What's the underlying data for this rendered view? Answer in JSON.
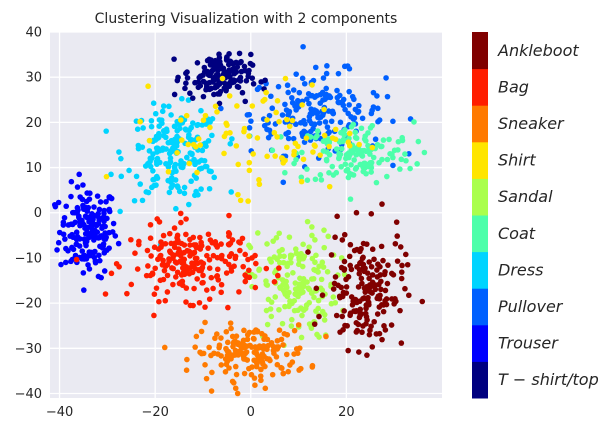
{
  "chart_data": {
    "type": "scatter",
    "title": "Clustering Visualization with 2 components",
    "xlabel": "",
    "ylabel": "",
    "xlim": [
      -42,
      40
    ],
    "ylim": [
      -41,
      40
    ],
    "x_ticks": [
      -40,
      -20,
      0,
      20
    ],
    "y_ticks": [
      40,
      30,
      20,
      10,
      0,
      -10,
      -20,
      -30,
      -40
    ],
    "grid": true,
    "background": "#eaeaf2",
    "colorbar": {
      "labels": [
        "T-shirt/top",
        "Trouser",
        "Pullover",
        "Dress",
        "Coat",
        "Sandal",
        "Shirt",
        "Sneaker",
        "Bag",
        "Ankleboot"
      ],
      "display_labels": [
        "T − shirt/top",
        "Trouser",
        "Pullover",
        "Dress",
        "Coat",
        "Sandal",
        "Shirt",
        "Sneaker",
        "Bag",
        "Ankleboot"
      ],
      "colors": [
        "#000080",
        "#0000ff",
        "#0060ff",
        "#00d4ff",
        "#4cffaa",
        "#aaff4c",
        "#ffe500",
        "#ff7a00",
        "#ff1e00",
        "#800000"
      ]
    },
    "series": [
      {
        "name": "T-shirt/top",
        "center_x": -7,
        "center_y": 30,
        "spread_x": 7,
        "spread_y": 5,
        "count": 150
      },
      {
        "name": "Trouser",
        "center_x": -34,
        "center_y": -4,
        "spread_x": 6,
        "spread_y": 10,
        "count": 180
      },
      {
        "name": "Pullover",
        "center_x": 14,
        "center_y": 22,
        "spread_x": 14,
        "spread_y": 9,
        "count": 190
      },
      {
        "name": "Dress",
        "center_x": -16,
        "center_y": 13,
        "spread_x": 10,
        "spread_y": 10,
        "count": 200
      },
      {
        "name": "Coat",
        "center_x": 22,
        "center_y": 13,
        "spread_x": 12,
        "spread_y": 7,
        "count": 150
      },
      {
        "name": "Sandal",
        "center_x": 9,
        "center_y": -16,
        "spread_x": 9,
        "spread_y": 12,
        "count": 170
      },
      {
        "name": "Shirt",
        "center_x": 3,
        "center_y": 17,
        "spread_x": 20,
        "spread_y": 12,
        "count": 90
      },
      {
        "name": "Sneaker",
        "center_x": 0,
        "center_y": -31,
        "spread_x": 12,
        "spread_y": 6,
        "count": 170
      },
      {
        "name": "Bag",
        "center_x": -12,
        "center_y": -11,
        "spread_x": 13,
        "spread_y": 8,
        "count": 220
      },
      {
        "name": "Ankleboot",
        "center_x": 24,
        "center_y": -17,
        "spread_x": 8,
        "spread_y": 13,
        "count": 180
      }
    ]
  }
}
